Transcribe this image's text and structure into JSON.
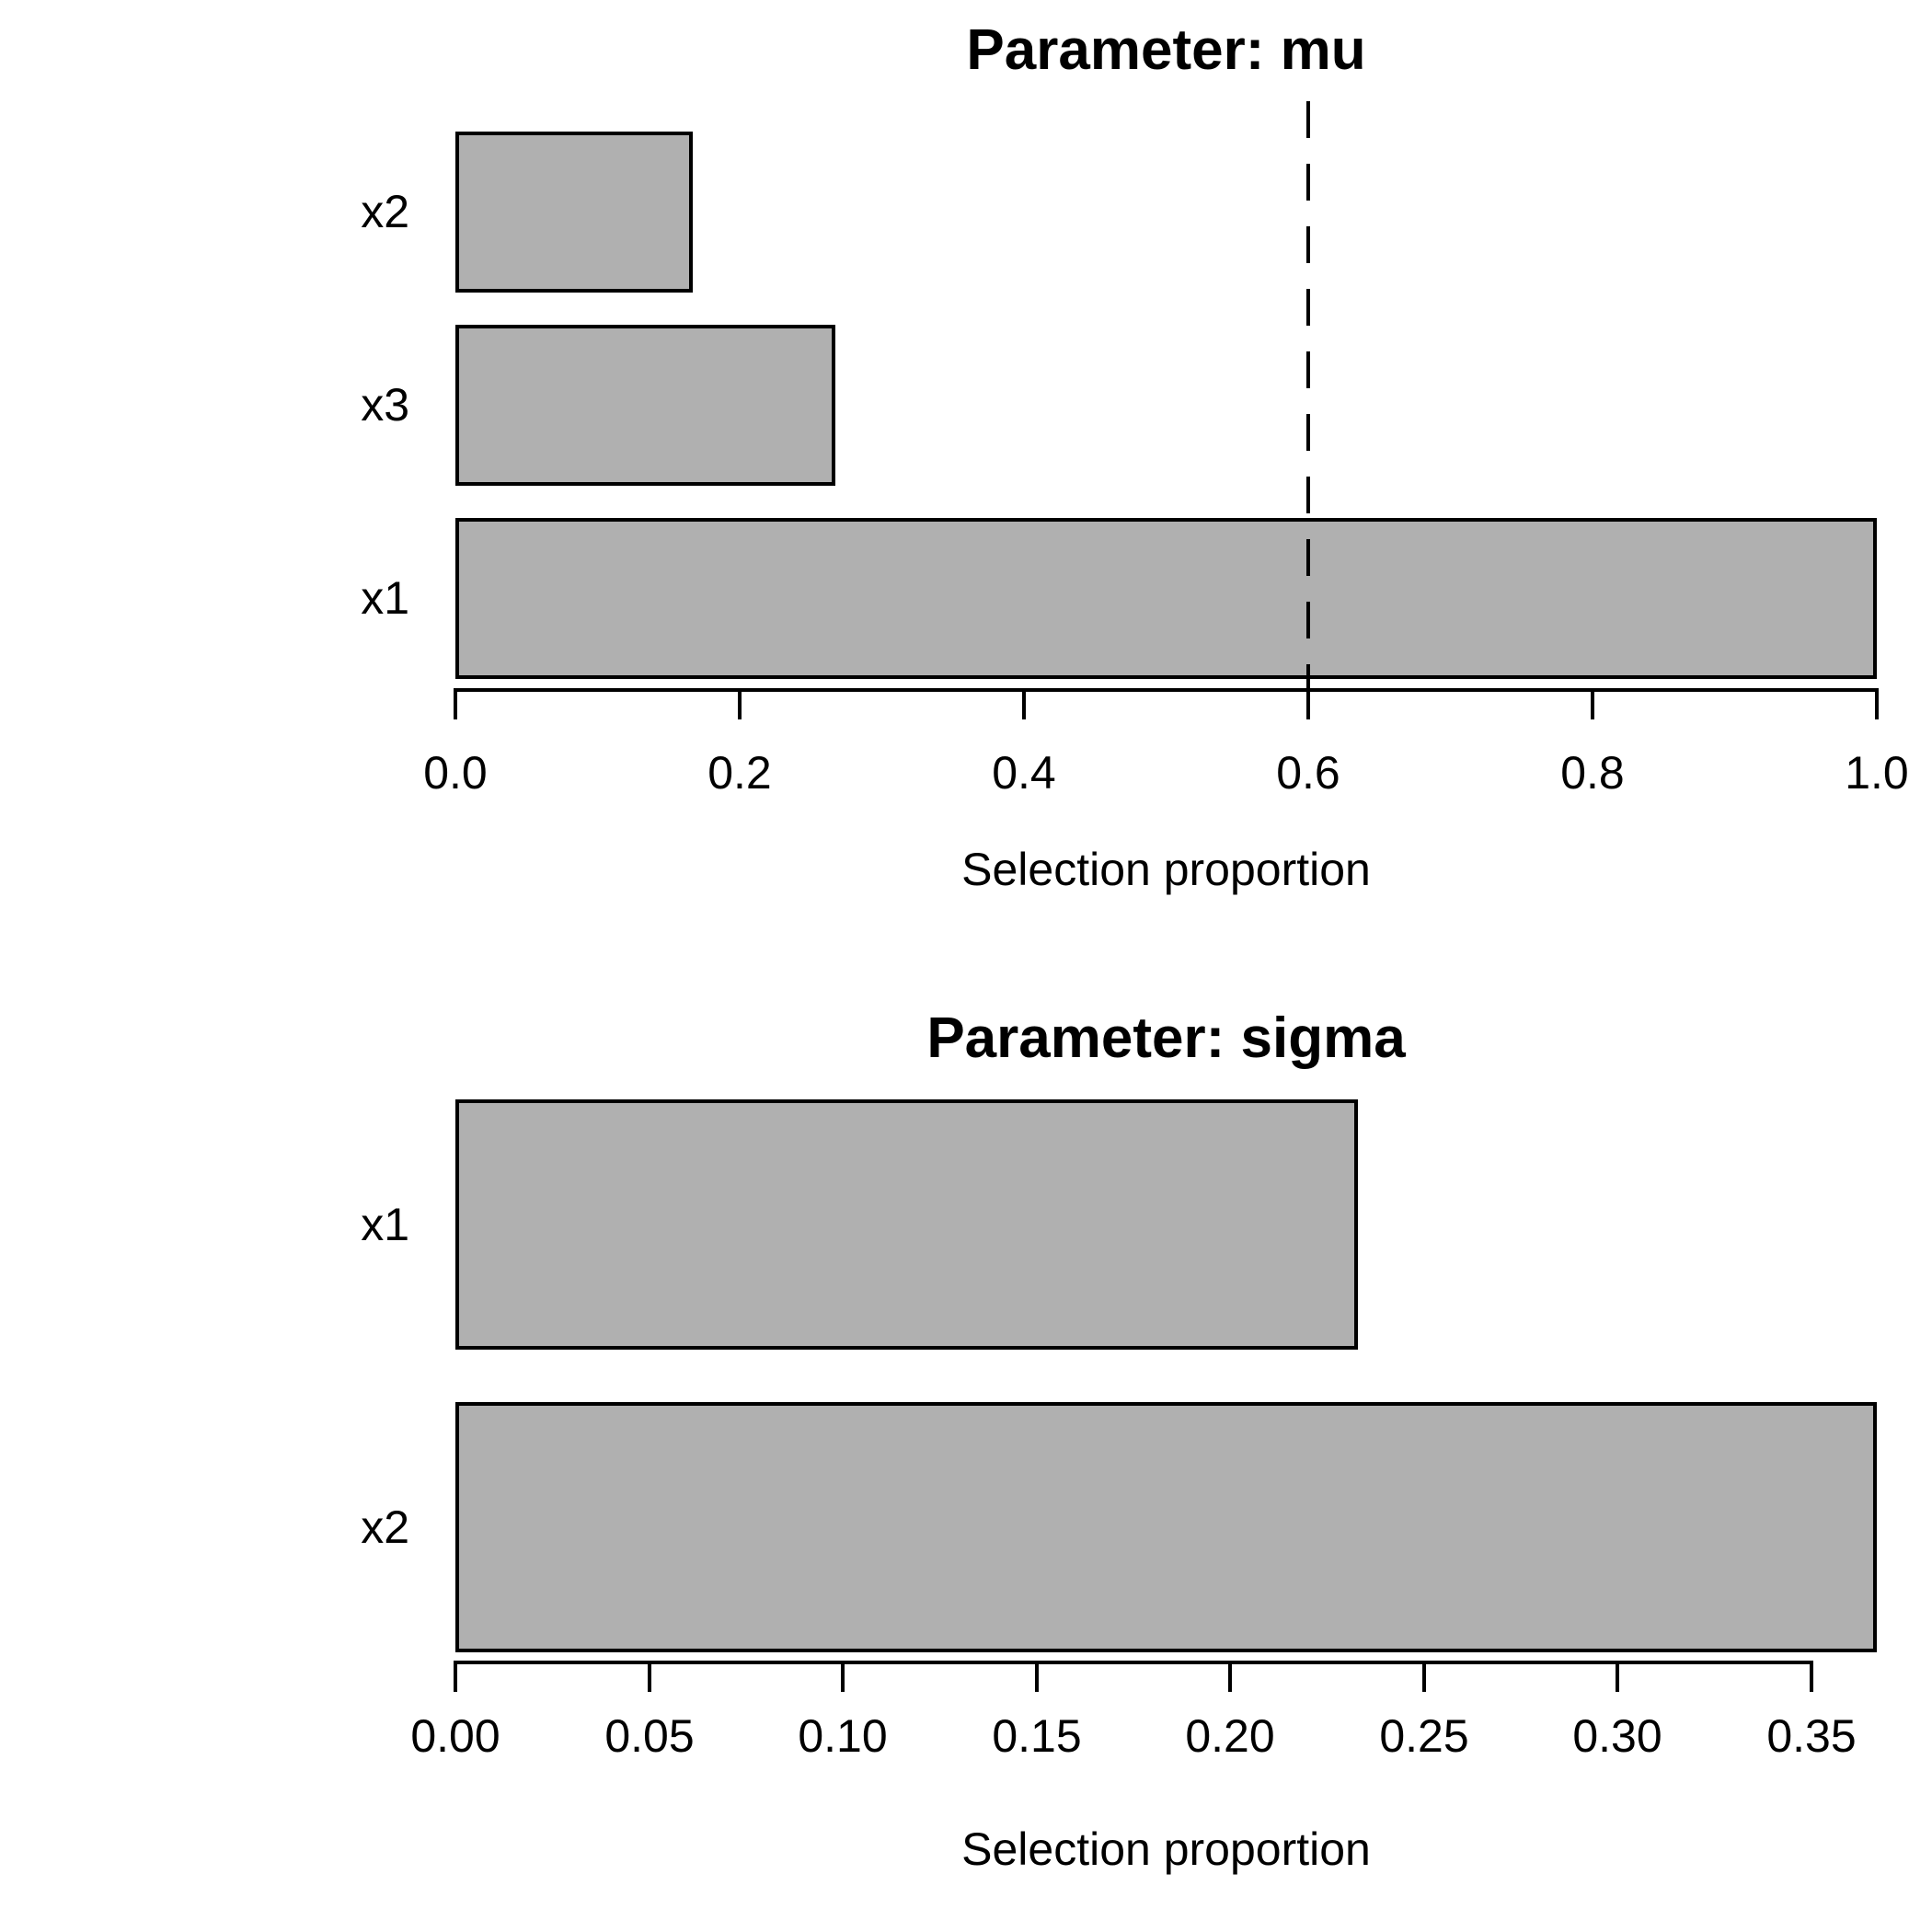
{
  "figure": {
    "background": "#ffffff",
    "text_color": "#000000"
  },
  "chart_data": [
    {
      "type": "bar",
      "orientation": "horizontal",
      "title": "Parameter: mu",
      "xlabel": "Selection proportion",
      "categories": [
        "x2",
        "x3",
        "x1"
      ],
      "values": [
        0.167,
        0.267,
        1.0
      ],
      "xlim": [
        0,
        1.0
      ],
      "xticks": [
        0,
        0.2,
        0.4,
        0.6,
        0.8,
        1.0
      ],
      "xtick_labels": [
        "0.0",
        "0.2",
        "0.4",
        "0.6",
        "0.8",
        "1.0"
      ],
      "threshold": 0.6,
      "threshold_style": "dashed",
      "bar_fill": "#b0b0b0",
      "bar_stroke": "#000000",
      "grid": false,
      "legend": false
    },
    {
      "type": "bar",
      "orientation": "horizontal",
      "title": "Parameter: sigma",
      "xlabel": "Selection proportion",
      "categories": [
        "x1",
        "x2"
      ],
      "values": [
        0.233,
        0.367
      ],
      "xlim": [
        0,
        0.367
      ],
      "xticks": [
        0,
        0.05,
        0.1,
        0.15,
        0.2,
        0.25,
        0.3,
        0.35
      ],
      "xtick_labels": [
        "0.00",
        "0.05",
        "0.10",
        "0.15",
        "0.20",
        "0.25",
        "0.30",
        "0.35"
      ],
      "threshold": null,
      "threshold_style": null,
      "bar_fill": "#b0b0b0",
      "bar_stroke": "#000000",
      "grid": false,
      "legend": false
    }
  ]
}
